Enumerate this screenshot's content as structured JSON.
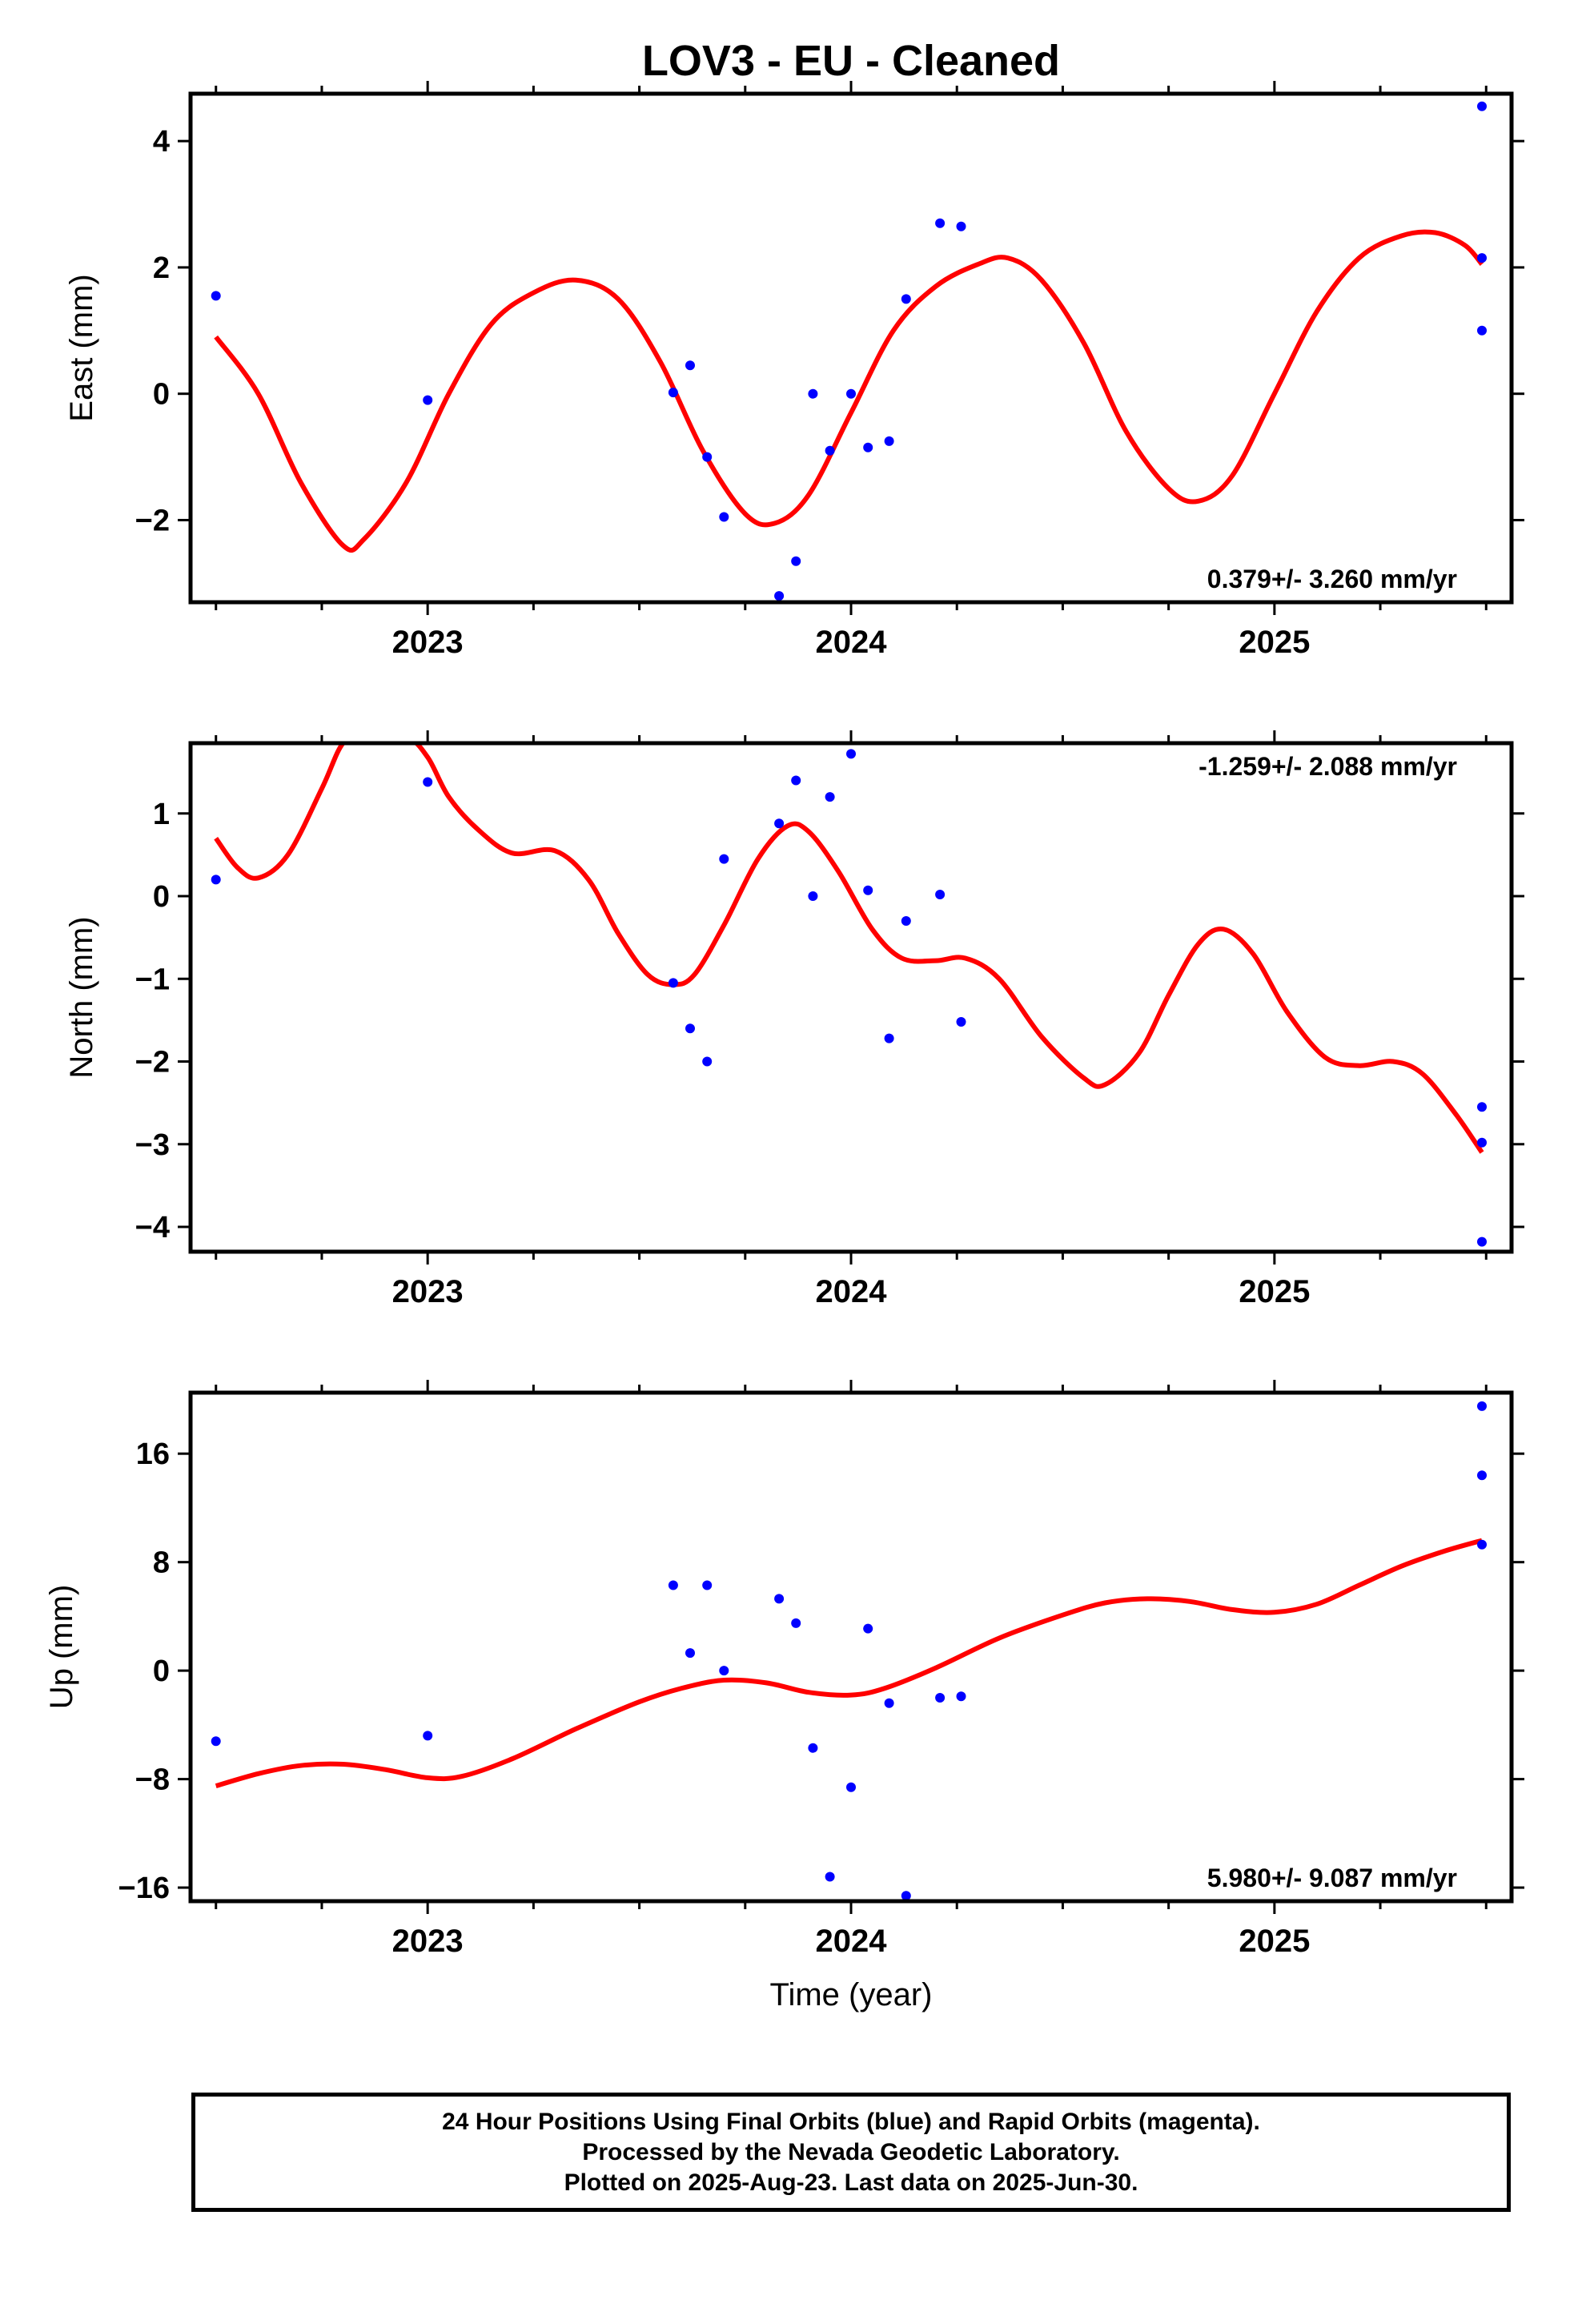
{
  "title": "LOV3  - EU - Cleaned",
  "colors": {
    "points": "#0000ff",
    "fit": "#ff0000",
    "frame": "#000000"
  },
  "x_axis_label": "Time (year)",
  "footer": {
    "line1": "24 Hour Positions Using Final Orbits (blue) and Rapid Orbits (magenta).",
    "line2": "Processed by the Nevada Geodetic Laboratory.",
    "line3": "Plotted on 2025-Aug-23. Last data on 2025-Jun-30."
  },
  "chart_data": [
    {
      "type": "scatter",
      "ylabel": "East (mm)",
      "xlim": [
        2022.44,
        2025.56
      ],
      "ylim": [
        -3.3,
        4.75
      ],
      "x_ticks": [
        2023,
        2024,
        2025
      ],
      "x_tick_labels": [
        "2023",
        "2024",
        "2025"
      ],
      "y_ticks": [
        -2,
        0,
        2,
        4
      ],
      "y_tick_labels": [
        "−2",
        "0",
        "2",
        "4"
      ],
      "rate_label": "0.379+/- 3.260 mm/yr",
      "rate_position": "bottom-right",
      "points": [
        [
          2022.5,
          1.55
        ],
        [
          2023.0,
          -0.1
        ],
        [
          2023.58,
          0.02
        ],
        [
          2023.62,
          0.45
        ],
        [
          2023.66,
          -1.0
        ],
        [
          2023.7,
          -1.95
        ],
        [
          2023.83,
          -3.2
        ],
        [
          2023.87,
          -2.65
        ],
        [
          2023.91,
          0.0
        ],
        [
          2023.95,
          -0.9
        ],
        [
          2024.0,
          0.0
        ],
        [
          2024.04,
          -0.85
        ],
        [
          2024.09,
          -0.75
        ],
        [
          2024.13,
          1.5
        ],
        [
          2024.21,
          2.7
        ],
        [
          2024.26,
          2.65
        ],
        [
          2025.49,
          4.55
        ],
        [
          2025.49,
          2.15
        ],
        [
          2025.49,
          1.0
        ]
      ],
      "fit": [
        [
          2022.5,
          0.9
        ],
        [
          2022.6,
          0.0
        ],
        [
          2022.7,
          -1.4
        ],
        [
          2022.8,
          -2.4
        ],
        [
          2022.85,
          -2.3
        ],
        [
          2022.95,
          -1.4
        ],
        [
          2023.05,
          0.0
        ],
        [
          2023.15,
          1.1
        ],
        [
          2023.25,
          1.6
        ],
        [
          2023.35,
          1.8
        ],
        [
          2023.45,
          1.5
        ],
        [
          2023.55,
          0.5
        ],
        [
          2023.65,
          -0.9
        ],
        [
          2023.75,
          -1.9
        ],
        [
          2023.82,
          -2.05
        ],
        [
          2023.9,
          -1.6
        ],
        [
          2024.0,
          -0.3
        ],
        [
          2024.1,
          1.0
        ],
        [
          2024.2,
          1.7
        ],
        [
          2024.3,
          2.05
        ],
        [
          2024.37,
          2.15
        ],
        [
          2024.45,
          1.8
        ],
        [
          2024.55,
          0.8
        ],
        [
          2024.65,
          -0.6
        ],
        [
          2024.75,
          -1.5
        ],
        [
          2024.82,
          -1.7
        ],
        [
          2024.9,
          -1.3
        ],
        [
          2025.0,
          0.0
        ],
        [
          2025.1,
          1.3
        ],
        [
          2025.2,
          2.15
        ],
        [
          2025.3,
          2.5
        ],
        [
          2025.38,
          2.55
        ],
        [
          2025.45,
          2.35
        ],
        [
          2025.49,
          2.05
        ]
      ]
    },
    {
      "type": "scatter",
      "ylabel": "North (mm)",
      "xlim": [
        2022.44,
        2025.56
      ],
      "ylim": [
        -4.3,
        1.85
      ],
      "x_ticks": [
        2023,
        2024,
        2025
      ],
      "x_tick_labels": [
        "2023",
        "2024",
        "2025"
      ],
      "y_ticks": [
        -4,
        -3,
        -2,
        -1,
        0,
        1
      ],
      "y_tick_labels": [
        "−4",
        "−3",
        "−2",
        "−1",
        "0",
        "1"
      ],
      "rate_label": "-1.259+/- 2.088 mm/yr",
      "rate_position": "top-right",
      "points": [
        [
          2022.5,
          0.2
        ],
        [
          2023.0,
          1.38
        ],
        [
          2023.58,
          -1.05
        ],
        [
          2023.62,
          -1.6
        ],
        [
          2023.66,
          -2.0
        ],
        [
          2023.7,
          0.45
        ],
        [
          2023.83,
          0.88
        ],
        [
          2023.87,
          1.4
        ],
        [
          2023.91,
          0.0
        ],
        [
          2023.95,
          1.2
        ],
        [
          2024.0,
          1.72
        ],
        [
          2024.04,
          0.07
        ],
        [
          2024.09,
          -1.72
        ],
        [
          2024.13,
          -0.3
        ],
        [
          2024.21,
          0.02
        ],
        [
          2024.26,
          -1.52
        ],
        [
          2025.49,
          -2.55
        ],
        [
          2025.49,
          -2.98
        ],
        [
          2025.49,
          -4.18
        ]
      ],
      "fit": [
        [
          2022.5,
          0.7
        ],
        [
          2022.55,
          0.35
        ],
        [
          2022.6,
          0.22
        ],
        [
          2022.67,
          0.5
        ],
        [
          2022.75,
          1.3
        ],
        [
          2022.8,
          1.85
        ],
        [
          2022.85,
          1.95
        ],
        [
          2022.95,
          1.92
        ],
        [
          2023.0,
          1.68
        ],
        [
          2023.05,
          1.2
        ],
        [
          2023.12,
          0.8
        ],
        [
          2023.2,
          0.52
        ],
        [
          2023.3,
          0.55
        ],
        [
          2023.38,
          0.2
        ],
        [
          2023.45,
          -0.45
        ],
        [
          2023.52,
          -0.95
        ],
        [
          2023.58,
          -1.07
        ],
        [
          2023.63,
          -0.95
        ],
        [
          2023.7,
          -0.35
        ],
        [
          2023.78,
          0.45
        ],
        [
          2023.85,
          0.85
        ],
        [
          2023.9,
          0.78
        ],
        [
          2023.97,
          0.3
        ],
        [
          2024.05,
          -0.4
        ],
        [
          2024.12,
          -0.75
        ],
        [
          2024.2,
          -0.78
        ],
        [
          2024.27,
          -0.75
        ],
        [
          2024.35,
          -1.0
        ],
        [
          2024.45,
          -1.7
        ],
        [
          2024.55,
          -2.2
        ],
        [
          2024.6,
          -2.28
        ],
        [
          2024.68,
          -1.9
        ],
        [
          2024.75,
          -1.2
        ],
        [
          2024.82,
          -0.58
        ],
        [
          2024.88,
          -0.4
        ],
        [
          2024.95,
          -0.7
        ],
        [
          2025.03,
          -1.4
        ],
        [
          2025.12,
          -1.95
        ],
        [
          2025.2,
          -2.05
        ],
        [
          2025.28,
          -2.0
        ],
        [
          2025.35,
          -2.15
        ],
        [
          2025.43,
          -2.65
        ],
        [
          2025.49,
          -3.1
        ]
      ]
    },
    {
      "type": "scatter",
      "ylabel": "Up (mm)",
      "xlim": [
        2022.44,
        2025.56
      ],
      "ylim": [
        -17,
        20.5
      ],
      "x_ticks": [
        2023,
        2024,
        2025
      ],
      "x_tick_labels": [
        "2023",
        "2024",
        "2025"
      ],
      "y_ticks": [
        -16,
        -8,
        0,
        8,
        16
      ],
      "y_tick_labels": [
        "−16",
        "−8",
        "0",
        "8",
        "16"
      ],
      "rate_label": "5.980+/- 9.087 mm/yr",
      "rate_position": "bottom-right",
      "points": [
        [
          2022.5,
          -5.2
        ],
        [
          2023.0,
          -4.8
        ],
        [
          2023.58,
          6.3
        ],
        [
          2023.62,
          1.3
        ],
        [
          2023.66,
          6.3
        ],
        [
          2023.7,
          0.0
        ],
        [
          2023.83,
          5.3
        ],
        [
          2023.87,
          3.5
        ],
        [
          2023.91,
          -5.7
        ],
        [
          2023.95,
          -15.2
        ],
        [
          2024.0,
          -8.6
        ],
        [
          2024.04,
          3.1
        ],
        [
          2024.09,
          -2.4
        ],
        [
          2024.13,
          -16.6
        ],
        [
          2024.21,
          -2.0
        ],
        [
          2024.26,
          -1.9
        ],
        [
          2025.49,
          19.5
        ],
        [
          2025.49,
          14.4
        ],
        [
          2025.49,
          9.3
        ]
      ],
      "fit": [
        [
          2022.5,
          -8.5
        ],
        [
          2022.6,
          -7.6
        ],
        [
          2022.7,
          -7.0
        ],
        [
          2022.8,
          -6.9
        ],
        [
          2022.9,
          -7.3
        ],
        [
          2023.0,
          -7.9
        ],
        [
          2023.08,
          -7.8
        ],
        [
          2023.2,
          -6.5
        ],
        [
          2023.35,
          -4.3
        ],
        [
          2023.5,
          -2.3
        ],
        [
          2023.6,
          -1.3
        ],
        [
          2023.7,
          -0.7
        ],
        [
          2023.8,
          -0.9
        ],
        [
          2023.9,
          -1.6
        ],
        [
          2024.0,
          -1.8
        ],
        [
          2024.08,
          -1.3
        ],
        [
          2024.2,
          0.2
        ],
        [
          2024.35,
          2.4
        ],
        [
          2024.5,
          4.1
        ],
        [
          2024.6,
          5.0
        ],
        [
          2024.7,
          5.3
        ],
        [
          2024.8,
          5.1
        ],
        [
          2024.9,
          4.5
        ],
        [
          2025.0,
          4.3
        ],
        [
          2025.1,
          4.9
        ],
        [
          2025.2,
          6.3
        ],
        [
          2025.3,
          7.7
        ],
        [
          2025.4,
          8.8
        ],
        [
          2025.49,
          9.6
        ]
      ]
    }
  ]
}
